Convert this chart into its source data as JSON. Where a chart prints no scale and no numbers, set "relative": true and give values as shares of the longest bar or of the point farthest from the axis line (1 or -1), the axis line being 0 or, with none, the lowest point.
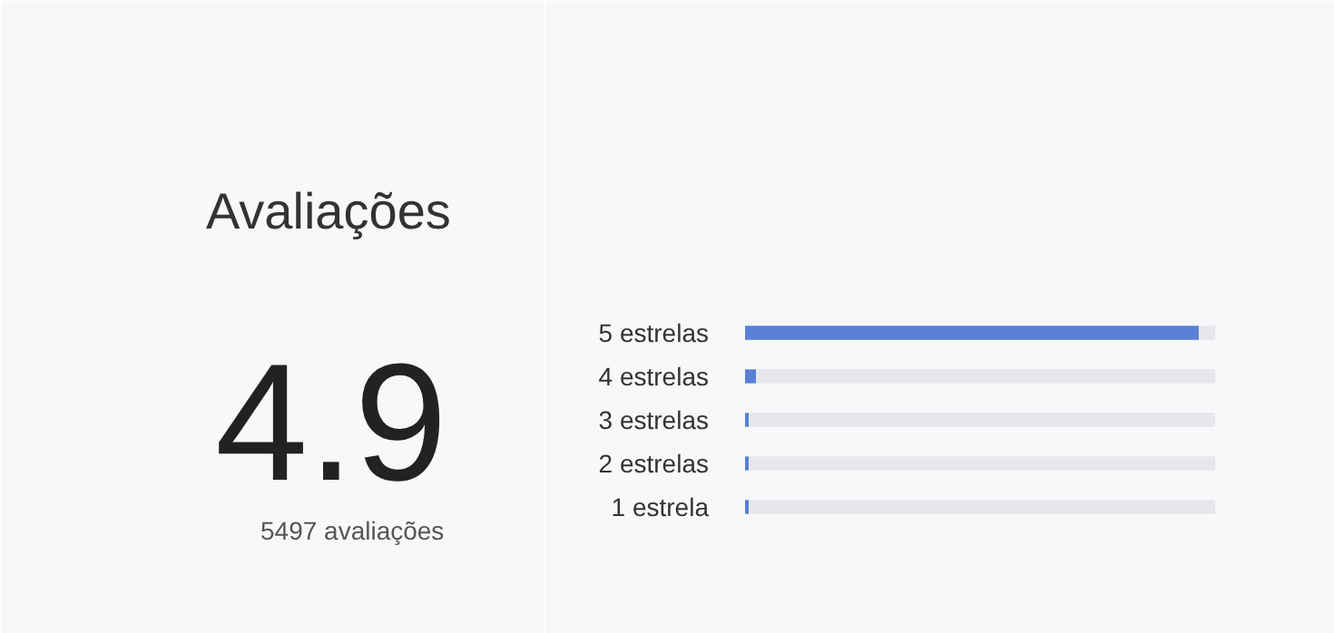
{
  "chart_data": {
    "type": "bar",
    "orientation": "horizontal",
    "relative": true,
    "title": "Avaliações",
    "annotations": [
      "4.9",
      "5497 avaliações"
    ],
    "categories": [
      "5 estrelas",
      "4 estrelas",
      "3 estrelas",
      "2 estrelas",
      "1 estrela"
    ],
    "values": [
      1,
      0.024,
      0.008,
      0.008,
      0.008
    ],
    "color": "#5a7fd6"
  }
}
